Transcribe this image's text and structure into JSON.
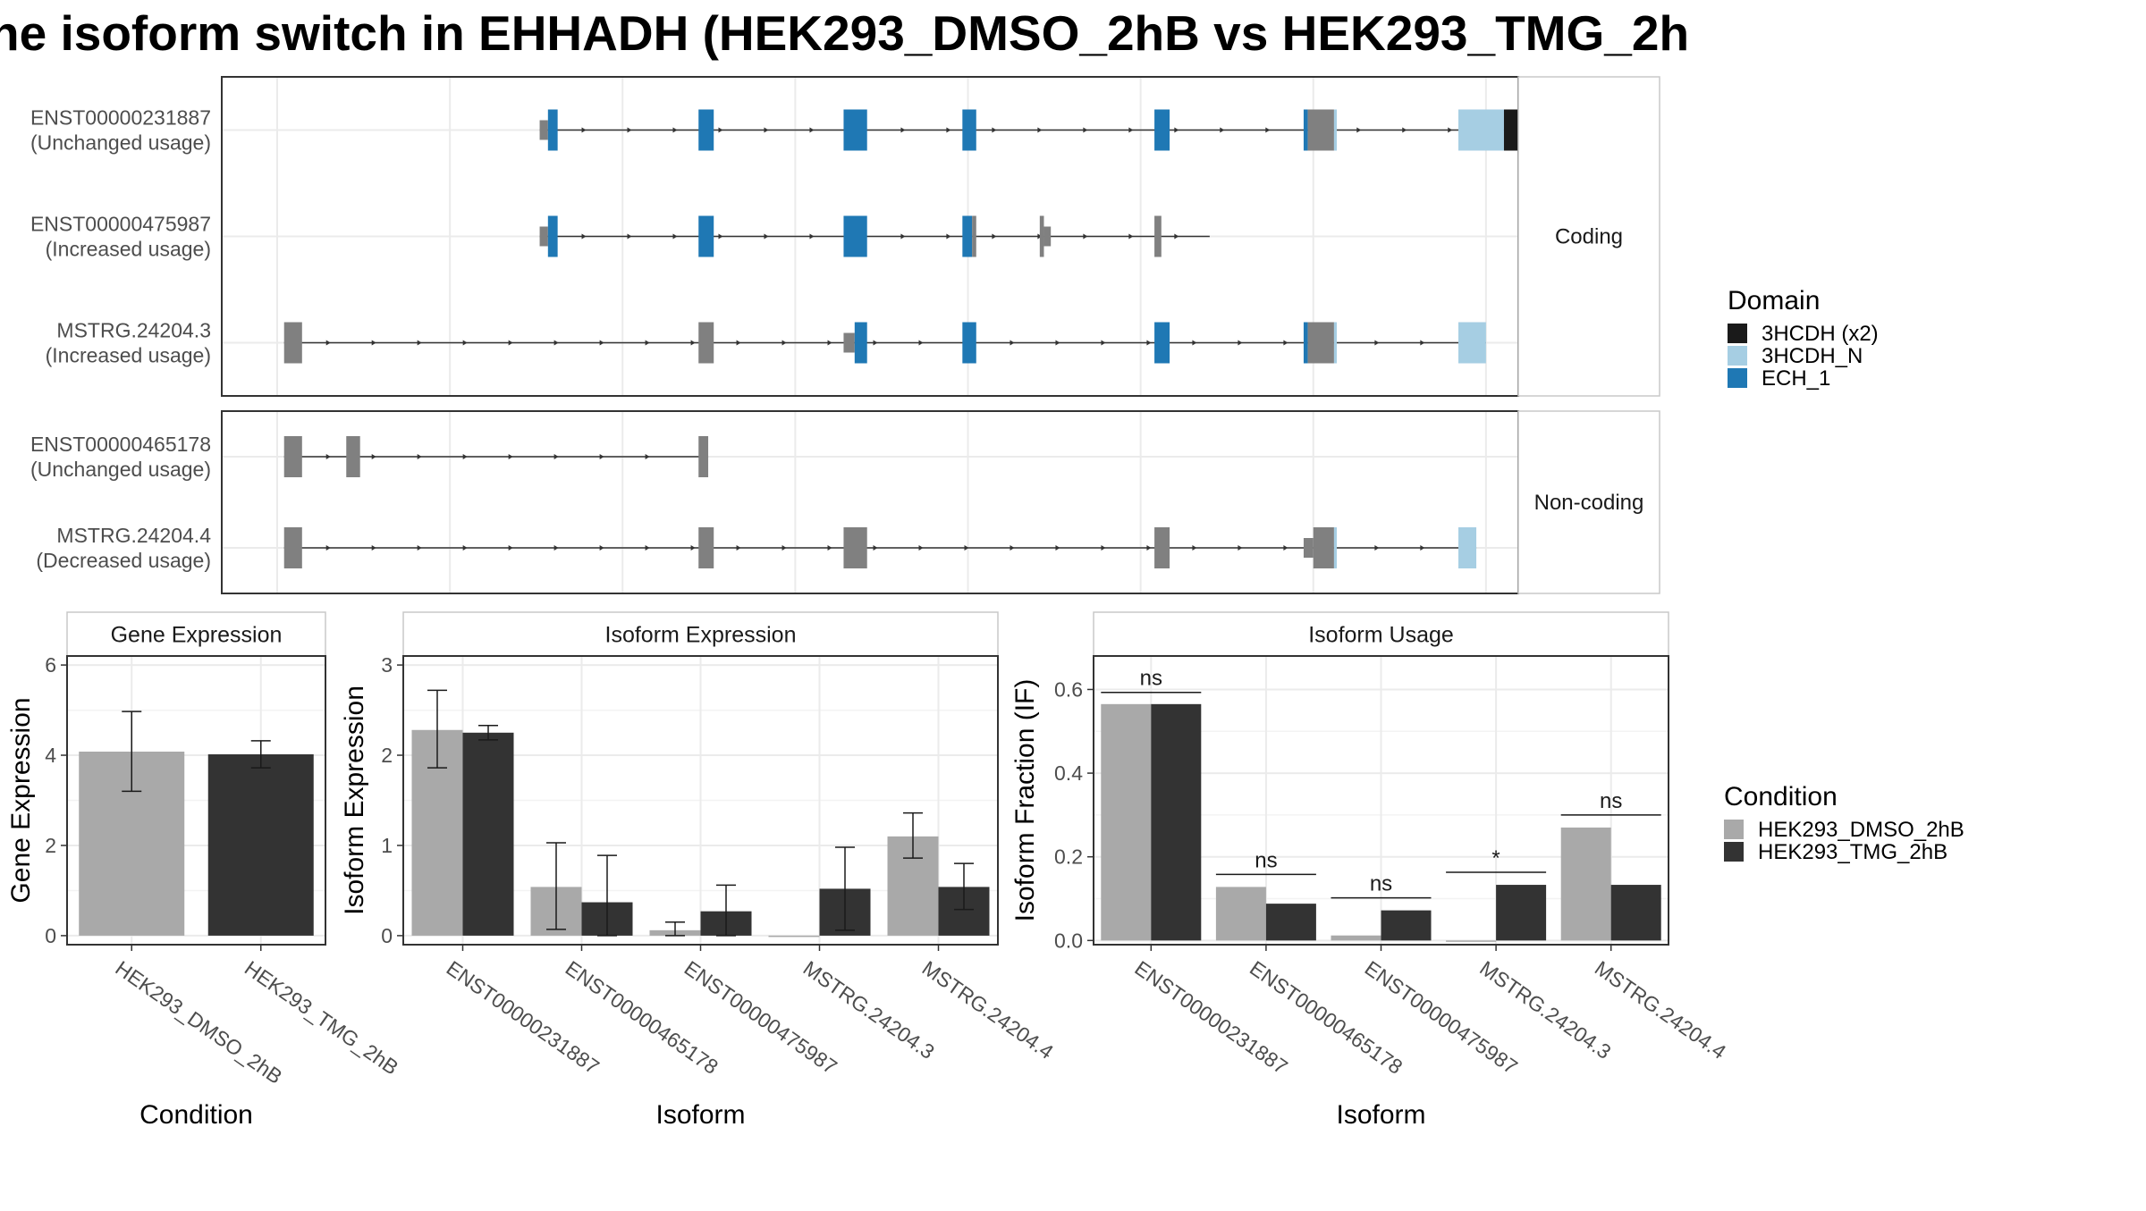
{
  "title": "he isoform switch in EHHADH (HEK293_DMSO_2hB vs HEK293_TMG_2h",
  "colors": {
    "dmso": "#a9a9a9",
    "tmg": "#333333",
    "noncoding": "#808080",
    "ech1": "#1f78b4",
    "hcdh_n": "#a6cee3",
    "hcdh_x2": "#1a1a1a",
    "grid": "#ebebeb",
    "strip": "#ffffff",
    "panel_border": "#333333"
  },
  "isoform_structures": {
    "genomic_range": [
      0,
      100
    ],
    "groups": [
      {
        "label": "Coding",
        "isoforms": [
          {
            "name": "ENST00000231887",
            "usage": "(Unchanged usage)",
            "tx_range": [
              19,
              91
            ],
            "features": [
              {
                "range": [
                  19,
                  19.6
                ],
                "type": "utr"
              },
              {
                "range": [
                  19.6,
                  20.3
                ],
                "type": "ECH_1"
              },
              {
                "range": [
                  30.5,
                  31.6
                ],
                "type": "ECH_1"
              },
              {
                "range": [
                  41,
                  42.7
                ],
                "type": "ECH_1"
              },
              {
                "range": [
                  49.6,
                  50.6
                ],
                "type": "ECH_1"
              },
              {
                "range": [
                  63.5,
                  64.6
                ],
                "type": "ECH_1"
              },
              {
                "range": [
                  74.3,
                  74.6
                ],
                "type": "ECH_1"
              },
              {
                "range": [
                  74.6,
                  76.5
                ],
                "type": "noncoding"
              },
              {
                "range": [
                  76.5,
                  76.7
                ],
                "type": "3HCDH_N"
              },
              {
                "range": [
                  85.5,
                  88.8
                ],
                "type": "3HCDH_N"
              },
              {
                "range": [
                  88.8,
                  90.3
                ],
                "type": "3HCDH (x2)"
              },
              {
                "range": [
                  90.3,
                  91
                ],
                "type": "noncoding"
              },
              {
                "range": [
                  91,
                  92.5
                ],
                "type": "3HCDH (x2)"
              },
              {
                "range": [
                  92.5,
                  96.5
                ],
                "type": "utr"
              }
            ]
          },
          {
            "name": "ENST00000475987",
            "usage": "(Increased usage)",
            "tx_range": [
              19,
              67.5
            ],
            "features": [
              {
                "range": [
                  19,
                  19.6
                ],
                "type": "utr"
              },
              {
                "range": [
                  19.6,
                  20.3
                ],
                "type": "ECH_1"
              },
              {
                "range": [
                  30.5,
                  31.6
                ],
                "type": "ECH_1"
              },
              {
                "range": [
                  41,
                  42.7
                ],
                "type": "ECH_1"
              },
              {
                "range": [
                  49.6,
                  50.3
                ],
                "type": "ECH_1"
              },
              {
                "range": [
                  50.3,
                  50.6
                ],
                "type": "noncoding"
              },
              {
                "range": [
                  55.2,
                  55.5
                ],
                "type": "noncoding"
              },
              {
                "range": [
                  55.5,
                  56
                ],
                "type": "utr"
              },
              {
                "range": [
                  63.5,
                  64
                ],
                "type": "noncoding"
              }
            ]
          },
          {
            "name": "MSTRG.24204.3",
            "usage": "(Increased usage)",
            "tx_range": [
              0.5,
              87.5
            ],
            "features": [
              {
                "range": [
                  0.5,
                  1.8
                ],
                "type": "noncoding"
              },
              {
                "range": [
                  30.5,
                  31.6
                ],
                "type": "noncoding"
              },
              {
                "range": [
                  41,
                  41.8
                ],
                "type": "utr"
              },
              {
                "range": [
                  41.8,
                  42.7
                ],
                "type": "ECH_1"
              },
              {
                "range": [
                  49.6,
                  50.6
                ],
                "type": "ECH_1"
              },
              {
                "range": [
                  63.5,
                  64.6
                ],
                "type": "ECH_1"
              },
              {
                "range": [
                  74.3,
                  74.6
                ],
                "type": "ECH_1"
              },
              {
                "range": [
                  74.6,
                  76.5
                ],
                "type": "noncoding"
              },
              {
                "range": [
                  76.5,
                  76.7
                ],
                "type": "3HCDH_N"
              },
              {
                "range": [
                  85.5,
                  87.5
                ],
                "type": "3HCDH_N"
              }
            ]
          }
        ]
      },
      {
        "label": "Non-coding",
        "isoforms": [
          {
            "name": "ENST00000465178",
            "usage": "(Unchanged usage)",
            "tx_range": [
              0.5,
              31.2
            ],
            "features": [
              {
                "range": [
                  0.5,
                  1.8
                ],
                "type": "noncoding"
              },
              {
                "range": [
                  5,
                  6
                ],
                "type": "noncoding"
              },
              {
                "range": [
                  30.5,
                  31.2
                ],
                "type": "noncoding"
              }
            ]
          },
          {
            "name": "MSTRG.24204.4",
            "usage": "(Decreased usage)",
            "tx_range": [
              0.5,
              86.8
            ],
            "features": [
              {
                "range": [
                  0.5,
                  1.8
                ],
                "type": "noncoding"
              },
              {
                "range": [
                  30.5,
                  31.6
                ],
                "type": "noncoding"
              },
              {
                "range": [
                  41,
                  42.7
                ],
                "type": "noncoding"
              },
              {
                "range": [
                  63.5,
                  64.6
                ],
                "type": "noncoding"
              },
              {
                "range": [
                  74.3,
                  75
                ],
                "type": "utr"
              },
              {
                "range": [
                  75,
                  76.5
                ],
                "type": "noncoding"
              },
              {
                "range": [
                  76.5,
                  76.7
                ],
                "type": "3HCDH_N"
              },
              {
                "range": [
                  85.5,
                  86.8
                ],
                "type": "3HCDH_N"
              }
            ]
          }
        ]
      }
    ]
  },
  "legends": {
    "domain": {
      "title": "Domain",
      "items": [
        {
          "label": "3HCDH (x2)",
          "color": "#1a1a1a"
        },
        {
          "label": "3HCDH_N",
          "color": "#a6cee3"
        },
        {
          "label": "ECH_1",
          "color": "#1f78b4"
        }
      ]
    },
    "condition": {
      "title": "Condition",
      "items": [
        {
          "label": "HEK293_DMSO_2hB",
          "color": "#a9a9a9"
        },
        {
          "label": "HEK293_TMG_2hB",
          "color": "#333333"
        }
      ]
    }
  },
  "chart_data": [
    {
      "type": "bar",
      "title": "Gene Expression",
      "xlabel": "Condition",
      "ylabel": "Gene Expression",
      "ylim": [
        -0.2,
        6.2
      ],
      "yticks": [
        0,
        2,
        4,
        6
      ],
      "categories": [
        "HEK293_DMSO_2hB",
        "HEK293_TMG_2hB"
      ],
      "series": [
        {
          "name": "Gene",
          "values": [
            4.08,
            4.02
          ],
          "err_low": [
            3.2,
            3.72
          ],
          "err_high": [
            4.97,
            4.32
          ]
        }
      ],
      "per_category_color": true
    },
    {
      "type": "bar",
      "title": "Isoform Expression",
      "xlabel": "Isoform",
      "ylabel": "Isoform Expression",
      "ylim": [
        -0.1,
        3.1
      ],
      "yticks": [
        0,
        1,
        2,
        3
      ],
      "categories": [
        "ENST00000231887",
        "ENST00000465178",
        "ENST00000475987",
        "MSTRG.24204.3",
        "MSTRG.24204.4"
      ],
      "series": [
        {
          "name": "HEK293_DMSO_2hB",
          "values": [
            2.28,
            0.54,
            0.06,
            0.0,
            1.1
          ],
          "err_low": [
            1.86,
            0.07,
            0.0,
            0.0,
            0.86
          ],
          "err_high": [
            2.72,
            1.03,
            0.15,
            0.0,
            1.36
          ]
        },
        {
          "name": "HEK293_TMG_2hB",
          "values": [
            2.25,
            0.37,
            0.27,
            0.52,
            0.54
          ],
          "err_low": [
            2.17,
            0.0,
            0.0,
            0.06,
            0.29
          ],
          "err_high": [
            2.33,
            0.89,
            0.56,
            0.98,
            0.8
          ]
        }
      ]
    },
    {
      "type": "bar",
      "title": "Isoform Usage",
      "xlabel": "Isoform",
      "ylabel": "Isoform Fraction (IF)",
      "ylim": [
        -0.01,
        0.68
      ],
      "yticks": [
        0.0,
        0.2,
        0.4,
        0.6
      ],
      "ytick_labels": [
        "0.0",
        "0.2",
        "0.4",
        "0.6"
      ],
      "categories": [
        "ENST00000231887",
        "ENST00000465178",
        "ENST00000475987",
        "MSTRG.24204.3",
        "MSTRG.24204.4"
      ],
      "series": [
        {
          "name": "HEK293_DMSO_2hB",
          "values": [
            0.565,
            0.128,
            0.012,
            0.0,
            0.27
          ]
        },
        {
          "name": "HEK293_TMG_2hB",
          "values": [
            0.565,
            0.088,
            0.072,
            0.133,
            0.133
          ]
        }
      ],
      "annotations": [
        {
          "category": "ENST00000231887",
          "label": "ns",
          "y": 0.593
        },
        {
          "category": "ENST00000465178",
          "label": "ns",
          "y": 0.158
        },
        {
          "category": "ENST00000475987",
          "label": "ns",
          "y": 0.102
        },
        {
          "category": "MSTRG.24204.3",
          "label": "*",
          "y": 0.163
        },
        {
          "category": "MSTRG.24204.4",
          "label": "ns",
          "y": 0.3
        }
      ]
    }
  ]
}
